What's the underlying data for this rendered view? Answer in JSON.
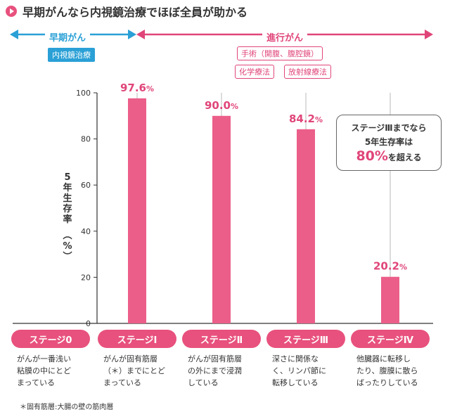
{
  "header": {
    "title": "早期がんなら内視鏡治療でほぼ全員が助かる"
  },
  "phases": {
    "early_label": "早期がん",
    "advanced_label": "進行がん",
    "early_treatment": "内視鏡治療",
    "advanced_treatments": [
      "手術（開腹、腹腔鏡）",
      "化学療法",
      "放射線療法"
    ]
  },
  "callout": {
    "line1": "ステージⅢまでなら",
    "line2": "5年生存率は",
    "highlight": "80%",
    "tail": "を超える"
  },
  "colors": {
    "bar": "#ec5e8a",
    "accent": "#e0457a",
    "blue": "#2aa0d6"
  },
  "chart_data": {
    "type": "bar",
    "ylabel": "5年生存率（%）",
    "ylim": [
      0,
      100
    ],
    "yticks": [
      0,
      20,
      40,
      60,
      80,
      100
    ],
    "categories": [
      "ステージ0",
      "ステージⅠ",
      "ステージⅡ",
      "ステージⅢ",
      "ステージⅣ"
    ],
    "values": [
      null,
      97.6,
      90.0,
      84.2,
      20.2
    ],
    "value_labels": [
      "",
      "97.6%",
      "90.0%",
      "84.2%",
      "20.2%"
    ],
    "descriptions": [
      [
        "がんが一番浅い",
        "粘膜の中にとど",
        "まっている"
      ],
      [
        "がんが固有筋層",
        "（＊）までにとど",
        "まっている"
      ],
      [
        "がんが固有筋層",
        "の外にまで浸潤",
        "している"
      ],
      [
        "深さに関係な",
        "く、リンパ節に",
        "転移している"
      ],
      [
        "他臓器に転移し",
        "たり、腹膜に散ら",
        "ばったりしている"
      ]
    ]
  },
  "footnote": "＊固有筋層:大腸の壁の筋肉層"
}
